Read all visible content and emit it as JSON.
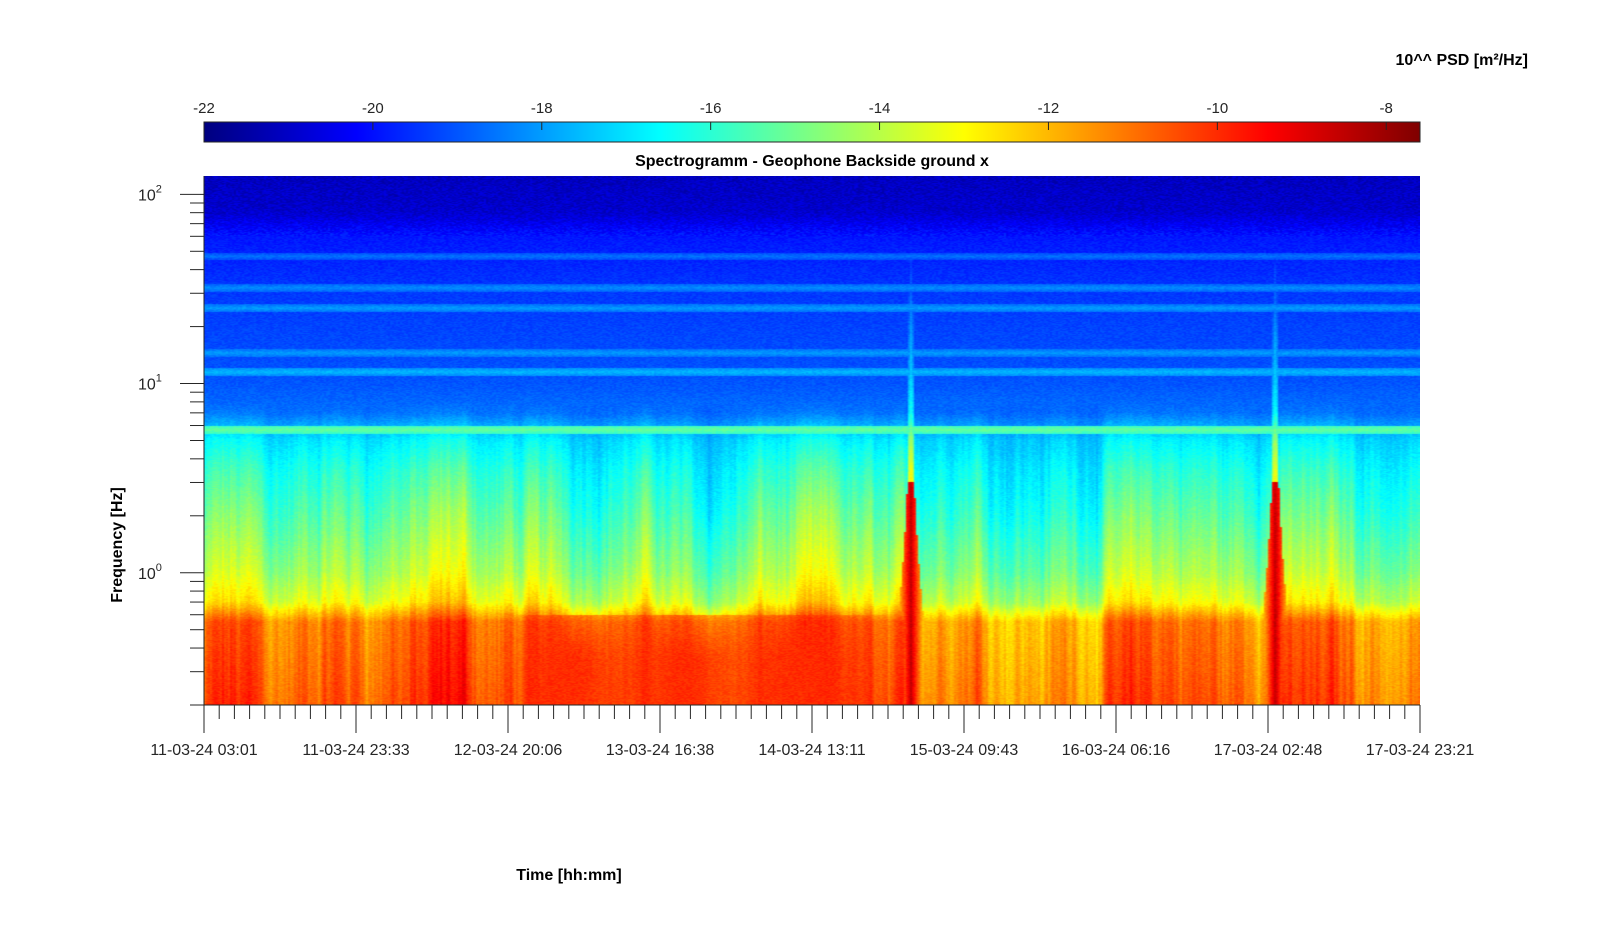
{
  "chart_data": {
    "type": "heatmap",
    "title": "Spectrogramm - Geophone Backside ground x",
    "xlabel": "Time [hh:mm]",
    "ylabel": "Frequency [Hz]",
    "colorbar": {
      "label": "10^^ PSD [m²/Hz]",
      "colormap": "jet",
      "range": [
        -22,
        -7.6
      ],
      "ticks": [
        "-22",
        "-20",
        "-18",
        "-16",
        "-14",
        "-12",
        "-10",
        "-8"
      ],
      "tick_values": [
        -22,
        -20,
        -18,
        -16,
        -14,
        -12,
        -10,
        -8
      ]
    },
    "x_ticks": [
      "11-03-24 03:01",
      "11-03-24 23:33",
      "12-03-24 20:06",
      "13-03-24 16:38",
      "14-03-24 13:11",
      "15-03-24 09:43",
      "16-03-24 06:16",
      "17-03-24 02:48",
      "17-03-24 23:21"
    ],
    "x_range": [
      "11-03-24 03:01",
      "17-03-24 23:21"
    ],
    "y_scale": "log",
    "y_range": [
      0.2,
      125
    ],
    "y_ticks": [
      {
        "base": "10",
        "exp": "0",
        "value": 1
      },
      {
        "base": "10",
        "exp": "1",
        "value": 10
      },
      {
        "base": "10",
        "exp": "2",
        "value": 100
      }
    ],
    "features": {
      "background_level_by_freq": [
        {
          "f": 0.2,
          "level": -10.7
        },
        {
          "f": 0.55,
          "level": -11.2
        },
        {
          "f": 0.7,
          "level": -13.3
        },
        {
          "f": 1.0,
          "level": -14.3
        },
        {
          "f": 2.0,
          "level": -15.4
        },
        {
          "f": 3.5,
          "level": -16.2
        },
        {
          "f": 5.0,
          "level": -16.9
        },
        {
          "f": 7.0,
          "level": -18.6
        },
        {
          "f": 10,
          "level": -19.0
        },
        {
          "f": 30,
          "level": -19.4
        },
        {
          "f": 60,
          "level": -19.9
        },
        {
          "f": 80,
          "level": -20.9
        },
        {
          "f": 125,
          "level": -21.1
        }
      ],
      "spectral_lines": [
        {
          "f": 5.7,
          "level": -15.2
        },
        {
          "f": 11.5,
          "level": -17.6
        },
        {
          "f": 14.5,
          "level": -18.0
        },
        {
          "f": 25,
          "level": -18.0
        },
        {
          "f": 32,
          "level": -18.2
        },
        {
          "f": 47,
          "level": -18.6
        }
      ],
      "transient_events": [
        {
          "time": "15-03-24 02:25",
          "max_freq": 60,
          "level": -8.5
        },
        {
          "time": "17-03-24 03:40",
          "max_freq": 60,
          "level": -8.5
        }
      ],
      "elevated_period": {
        "start": "12-03-24 20:06",
        "end": "15-03-24 01:00",
        "max_freq": 0.6,
        "level": -10.0
      }
    }
  }
}
